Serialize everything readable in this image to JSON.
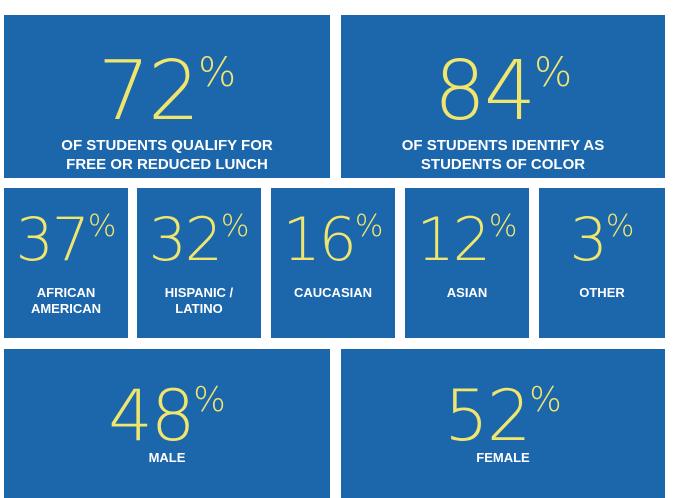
{
  "colors": {
    "tile": "#1c66ab",
    "stat": "#f0e66e",
    "label": "#ffffff"
  },
  "tiles": {
    "lunch": {
      "value": "72",
      "suffix": "%",
      "label": "OF STUDENTS QUALIFY FOR\nFREE OR REDUCED LUNCH"
    },
    "color": {
      "value": "84",
      "suffix": "%",
      "label": "OF STUDENTS IDENTIFY AS\nSTUDENTS OF COLOR"
    },
    "aa": {
      "value": "37",
      "suffix": "%",
      "label": "AFRICAN\nAMERICAN"
    },
    "hisp": {
      "value": "32",
      "suffix": "%",
      "label": "HISPANIC /\nLATINO"
    },
    "cauc": {
      "value": "16",
      "suffix": "%",
      "label": "CAUCASIAN"
    },
    "asian": {
      "value": "12",
      "suffix": "%",
      "label": "ASIAN"
    },
    "other": {
      "value": "3",
      "suffix": "%",
      "label": "OTHER"
    },
    "male": {
      "value": "48",
      "suffix": "%",
      "label": "MALE"
    },
    "female": {
      "value": "52",
      "suffix": "%",
      "label": "FEMALE"
    }
  }
}
